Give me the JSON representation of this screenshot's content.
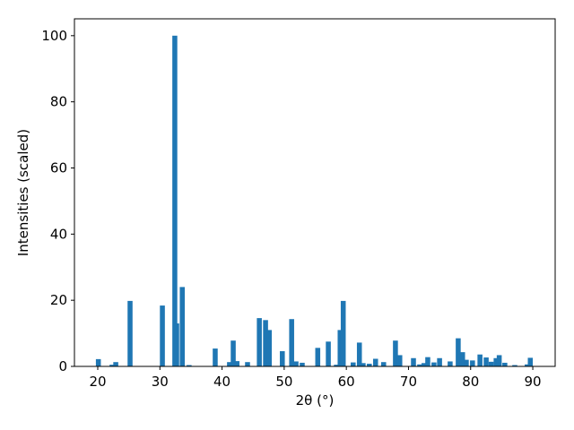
{
  "chart_data": {
    "type": "bar",
    "x_label": "2θ (°)",
    "y_label": "Intensities (scaled)",
    "color": "#1f77b4",
    "x": [
      20.1,
      22.3,
      22.9,
      25.2,
      30.4,
      32.4,
      32.7,
      33.6,
      34.7,
      38.9,
      41.2,
      41.8,
      42.4,
      44.1,
      46.0,
      47.0,
      47.6,
      49.7,
      51.2,
      51.9,
      52.9,
      55.4,
      57.1,
      58.4,
      59.0,
      59.5,
      61.1,
      62.1,
      62.7,
      63.7,
      64.7,
      66.0,
      67.9,
      68.6,
      70.8,
      71.8,
      72.5,
      73.1,
      74.1,
      75.0,
      76.7,
      78.0,
      78.7,
      79.3,
      80.3,
      81.5,
      82.5,
      83.3,
      84.1,
      84.6,
      85.5,
      87.1,
      89.1,
      89.6
    ],
    "values": [
      2.2,
      0.5,
      1.3,
      19.8,
      18.4,
      100,
      13,
      24,
      0.4,
      5.4,
      1.3,
      7.8,
      1.6,
      1.3,
      14.6,
      14.0,
      11.0,
      4.6,
      14.3,
      1.5,
      1.1,
      5.6,
      7.5,
      0.5,
      11,
      19.8,
      1.2,
      7.2,
      1.0,
      0.8,
      2.3,
      1.3,
      7.8,
      3.4,
      2.5,
      0.6,
      1.0,
      2.8,
      1.2,
      2.5,
      1.5,
      8.5,
      4.3,
      2.0,
      1.8,
      3.6,
      2.7,
      1.4,
      2.5,
      3.4,
      1.1,
      0.4,
      0.6,
      2.6
    ],
    "xlim": [
      16.25,
      93.6
    ],
    "ylim": [
      0,
      105.1
    ],
    "xticks": [
      20,
      30,
      40,
      50,
      60,
      70,
      80,
      90
    ],
    "yticks": [
      0,
      20,
      40,
      60,
      80,
      100
    ]
  }
}
